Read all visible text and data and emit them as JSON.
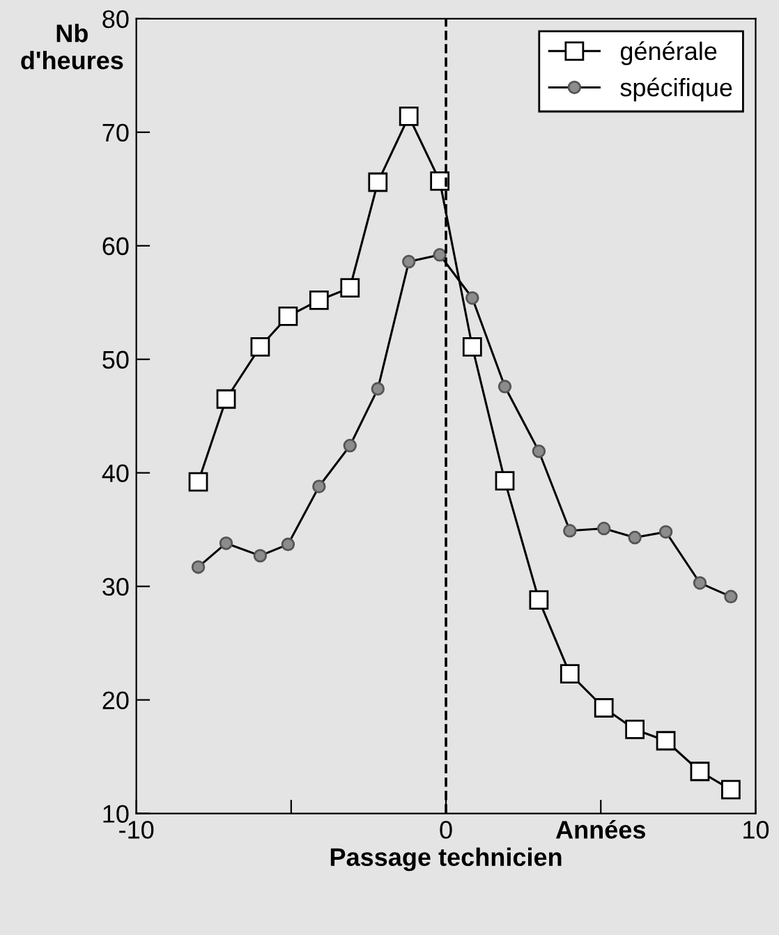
{
  "chart_data": {
    "type": "line",
    "xlabel": "Passage technicien",
    "ylabel": "Nb\nd'heures",
    "x": [
      -8.0,
      -7.1,
      -6.0,
      -5.1,
      -4.1,
      -3.1,
      -2.2,
      -1.2,
      -0.2,
      0.85,
      1.9,
      3.0,
      4.0,
      5.1,
      6.1,
      7.1,
      8.2,
      9.2
    ],
    "series": [
      {
        "name": "générale",
        "color": "#000000",
        "marker": "square",
        "values": [
          39.2,
          46.5,
          51.1,
          53.8,
          55.2,
          56.3,
          65.6,
          71.4,
          65.7,
          51.1,
          39.3,
          28.8,
          22.3,
          19.3,
          17.4,
          16.4,
          13.7,
          12.1
        ]
      },
      {
        "name": "spécifique",
        "color": "#8c8c8c",
        "marker": "circle",
        "values": [
          31.7,
          33.8,
          32.7,
          33.7,
          38.8,
          42.4,
          47.4,
          58.6,
          59.2,
          55.4,
          47.6,
          41.9,
          34.9,
          35.1,
          34.3,
          34.8,
          30.3,
          29.1
        ]
      }
    ],
    "xlim": [
      -10,
      10
    ],
    "xticks": [
      -10,
      {
        "value": -5,
        "label": null
      },
      0,
      {
        "value": 5,
        "label": "Années"
      },
      10
    ],
    "ylim": [
      10,
      80
    ],
    "yticks": [
      10,
      20,
      30,
      40,
      50,
      60,
      70,
      80
    ],
    "ref_lines": [
      {
        "axis": "x",
        "value": 0,
        "line_style": "dashed",
        "color": "#000000"
      }
    ],
    "legend": "top right",
    "grid": false,
    "line_style": "solid"
  }
}
